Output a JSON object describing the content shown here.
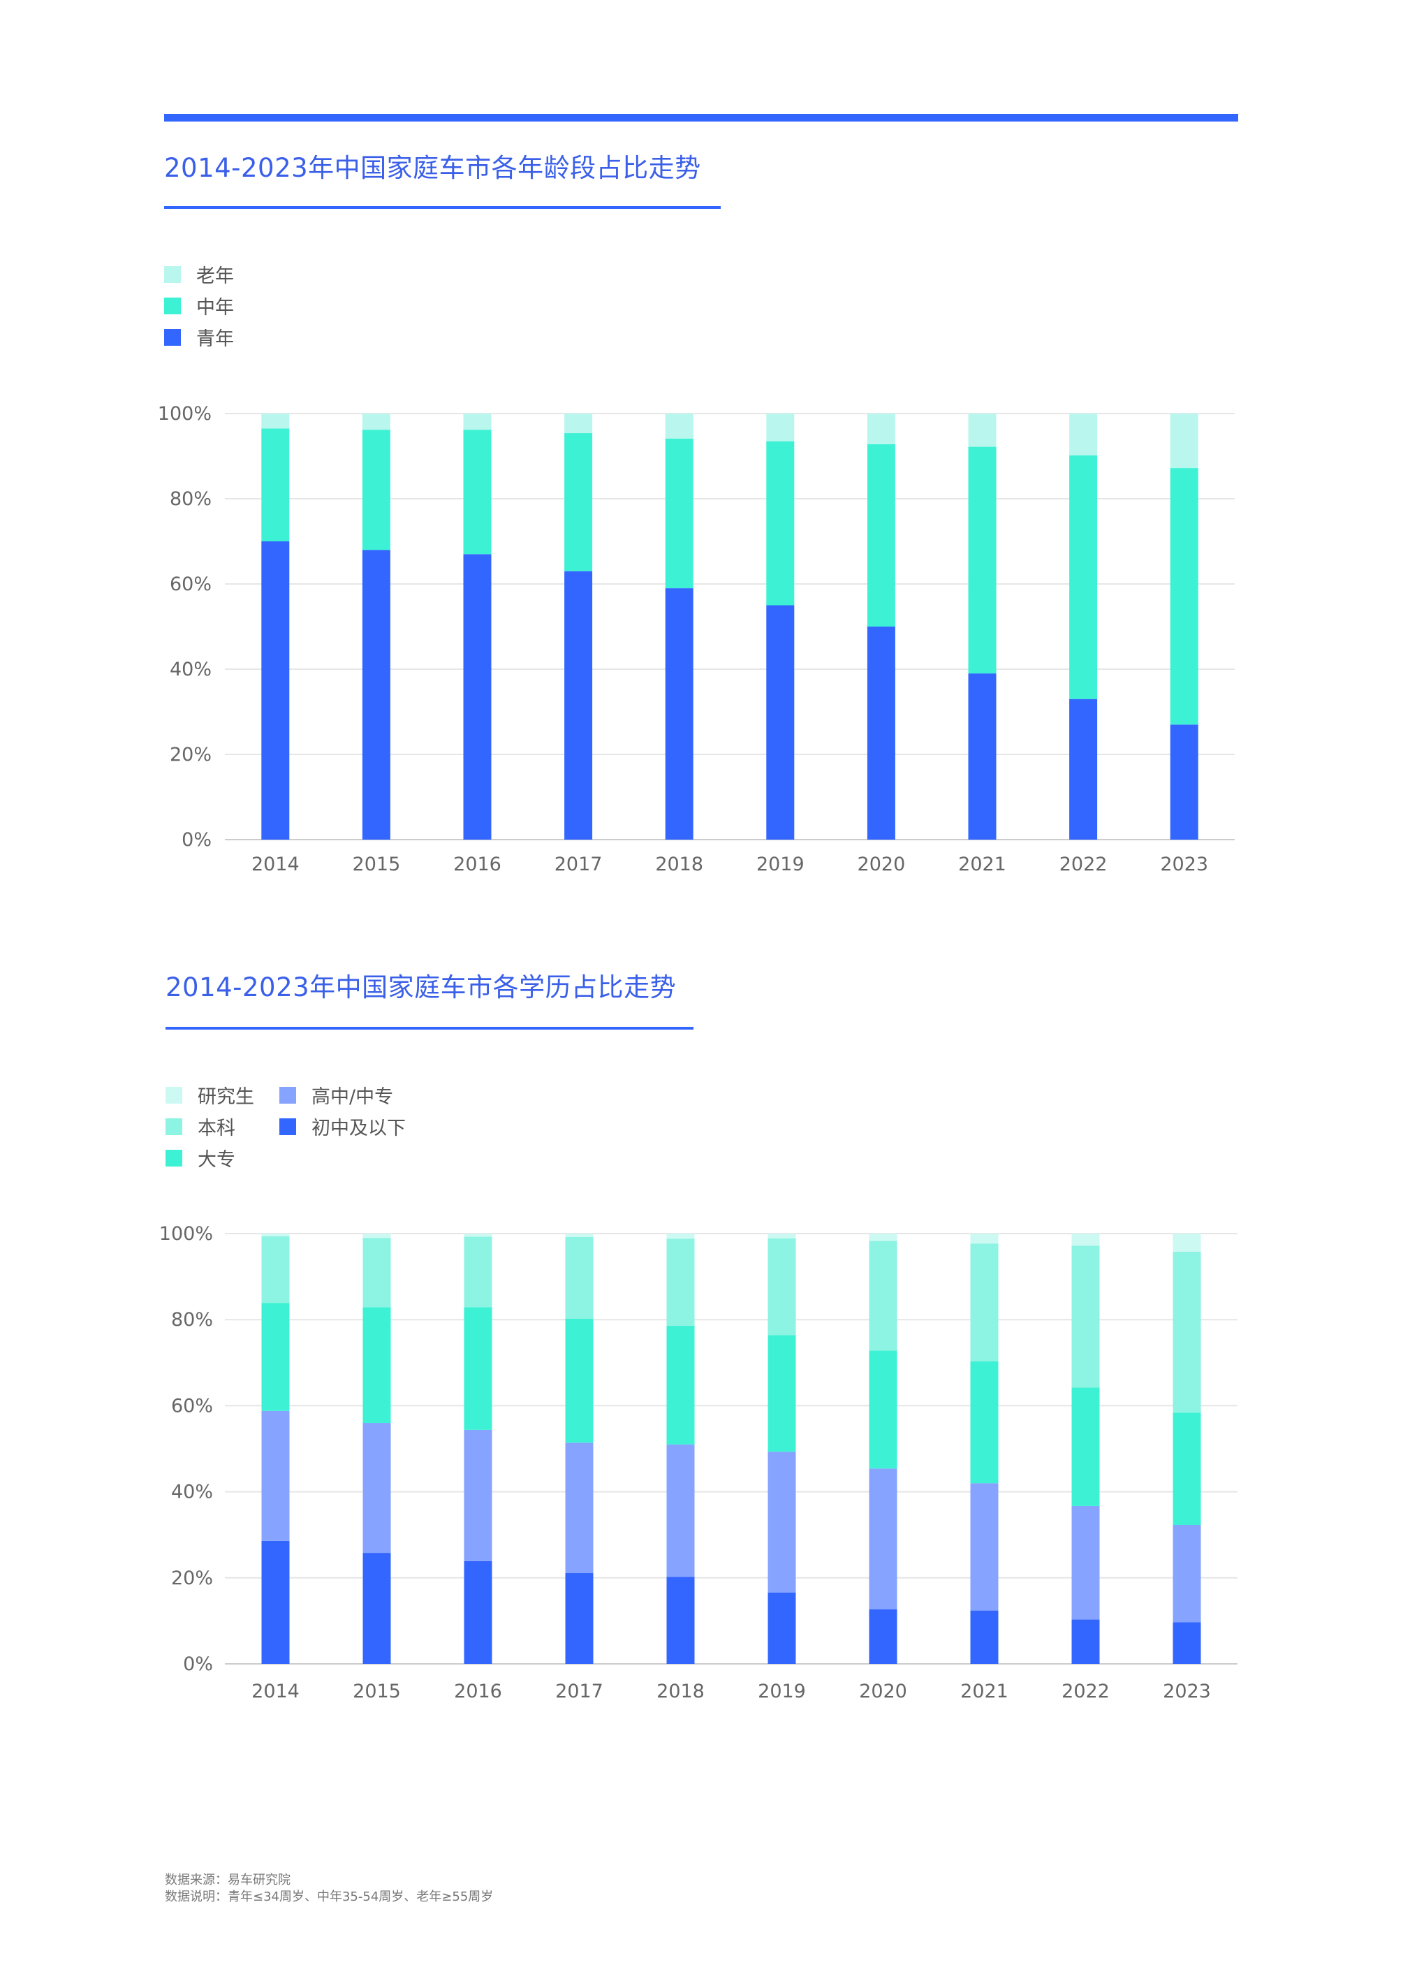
{
  "colors": {
    "accent": "#3366ff",
    "title_text": "#3a5fe8",
    "grid": "#e6e6e6",
    "axis": "#cccccc"
  },
  "charts": [
    {
      "title": "2014-2023年中国家庭车市各年龄段占比走势",
      "legend": [
        {
          "label": "老年",
          "color": "#b9f7ee"
        },
        {
          "label": "中年",
          "color": "#3df2d4"
        },
        {
          "label": "青年",
          "color": "#3366ff"
        }
      ]
    },
    {
      "title": "2014-2023年中国家庭车市各学历占比走势",
      "legend": [
        {
          "label": "研究生",
          "color": "#cdf9f3"
        },
        {
          "label": "本科",
          "color": "#8df3e2"
        },
        {
          "label": "大专",
          "color": "#3df2d4"
        },
        {
          "label": "高中/中专",
          "color": "#85a3ff"
        },
        {
          "label": "初中及以下",
          "color": "#3366ff"
        }
      ]
    }
  ],
  "chart_data": [
    {
      "type": "bar",
      "stacked": true,
      "title": "2014-2023年中国家庭车市各年龄段占比走势",
      "categories": [
        "2014",
        "2015",
        "2016",
        "2017",
        "2018",
        "2019",
        "2020",
        "2021",
        "2022",
        "2023"
      ],
      "y_ticks": [
        "0%",
        "20%",
        "40%",
        "60%",
        "80%",
        "100%"
      ],
      "ylim": [
        0,
        100
      ],
      "grid": true,
      "legend_position": "top-left",
      "series": [
        {
          "name": "青年",
          "color": "#3366ff",
          "values": [
            70,
            68,
            67,
            63,
            59,
            55,
            50,
            39,
            33,
            27
          ]
        },
        {
          "name": "中年",
          "color": "#3df2d4",
          "values": [
            26.5,
            28.2,
            29.2,
            32.4,
            35.1,
            38.5,
            42.8,
            53.2,
            57.2,
            60.2
          ]
        },
        {
          "name": "老年",
          "color": "#b9f7ee",
          "values": [
            3.5,
            3.8,
            3.8,
            4.6,
            5.9,
            6.5,
            7.2,
            7.8,
            9.8,
            12.8
          ]
        }
      ]
    },
    {
      "type": "bar",
      "stacked": true,
      "title": "2014-2023年中国家庭车市各学历占比走势",
      "categories": [
        "2014",
        "2015",
        "2016",
        "2017",
        "2018",
        "2019",
        "2020",
        "2021",
        "2022",
        "2023"
      ],
      "y_ticks": [
        "0%",
        "20%",
        "40%",
        "60%",
        "80%",
        "100%"
      ],
      "ylim": [
        0,
        100
      ],
      "grid": true,
      "legend_position": "top-left",
      "series": [
        {
          "name": "初中及以下",
          "color": "#3366ff",
          "values": [
            28.6,
            25.8,
            23.9,
            21.1,
            20.2,
            16.6,
            12.7,
            12.4,
            10.3,
            9.7
          ]
        },
        {
          "name": "高中/中专",
          "color": "#85a3ff",
          "values": [
            30.2,
            30.2,
            30.5,
            30.3,
            30.8,
            32.7,
            32.7,
            29.6,
            26.4,
            22.6
          ]
        },
        {
          "name": "大专",
          "color": "#3df2d4",
          "values": [
            25.1,
            26.9,
            28.5,
            28.8,
            27.6,
            27.1,
            27.4,
            28.3,
            27.5,
            26.1
          ]
        },
        {
          "name": "本科",
          "color": "#8df3e2",
          "values": [
            15.5,
            16.1,
            16.4,
            19.0,
            20.2,
            22.5,
            25.5,
            27.4,
            33.0,
            37.4
          ]
        },
        {
          "name": "研究生",
          "color": "#cdf9f3",
          "values": [
            0.6,
            1.0,
            0.7,
            0.8,
            1.2,
            1.1,
            1.7,
            2.3,
            2.8,
            4.2
          ]
        }
      ]
    }
  ],
  "footer": {
    "source": "数据来源：易车研究院",
    "note": "数据说明：青年≤34周岁、中年35-54周岁、老年≥55周岁"
  }
}
